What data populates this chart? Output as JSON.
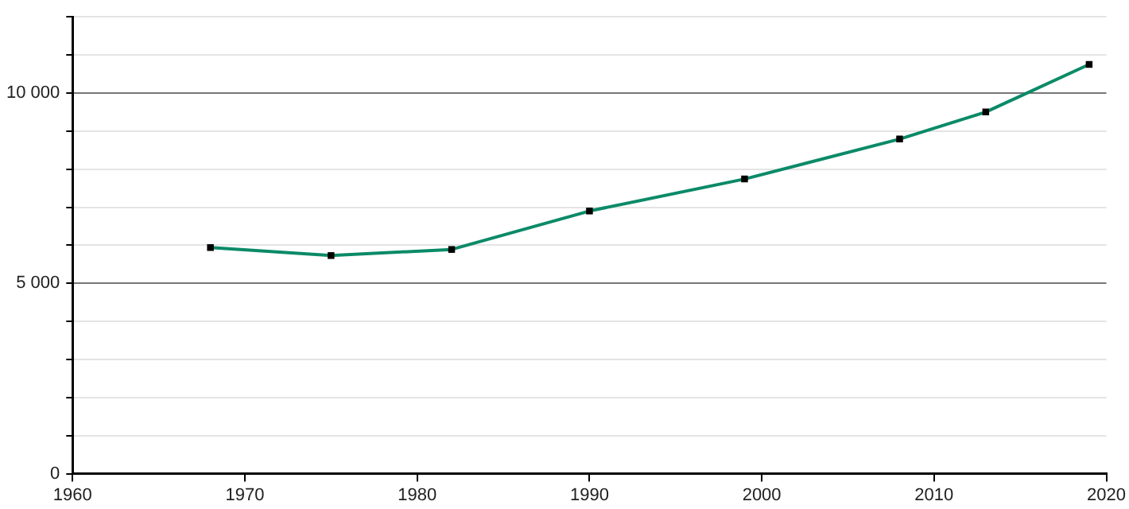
{
  "chart_data": {
    "type": "line",
    "x": [
      1968,
      1975,
      1982,
      1990,
      1999,
      2008,
      2013,
      2019
    ],
    "series": [
      {
        "color": "#0b8a68",
        "values": [
          5940,
          5730,
          5890,
          6900,
          7740,
          8790,
          9500,
          10750
        ]
      }
    ],
    "xlim": [
      1960,
      2020
    ],
    "xticks": [
      1960,
      1970,
      1980,
      1990,
      2000,
      2010,
      2020
    ],
    "ylim": [
      0,
      12000
    ],
    "yticks": [
      {
        "value": 0,
        "label": "0"
      },
      {
        "value": 1000,
        "label": null
      },
      {
        "value": 2000,
        "label": null
      },
      {
        "value": 3000,
        "label": null
      },
      {
        "value": 4000,
        "label": null
      },
      {
        "value": 5000,
        "label": "5 000"
      },
      {
        "value": 6000,
        "label": null
      },
      {
        "value": 7000,
        "label": null
      },
      {
        "value": 8000,
        "label": null
      },
      {
        "value": 9000,
        "label": null
      },
      {
        "value": 10000,
        "label": "10 000"
      },
      {
        "value": 11000,
        "label": null
      },
      {
        "value": 12000,
        "label": null
      }
    ],
    "grid": "y",
    "marker": "square",
    "line_style": "solid",
    "legend": false
  }
}
